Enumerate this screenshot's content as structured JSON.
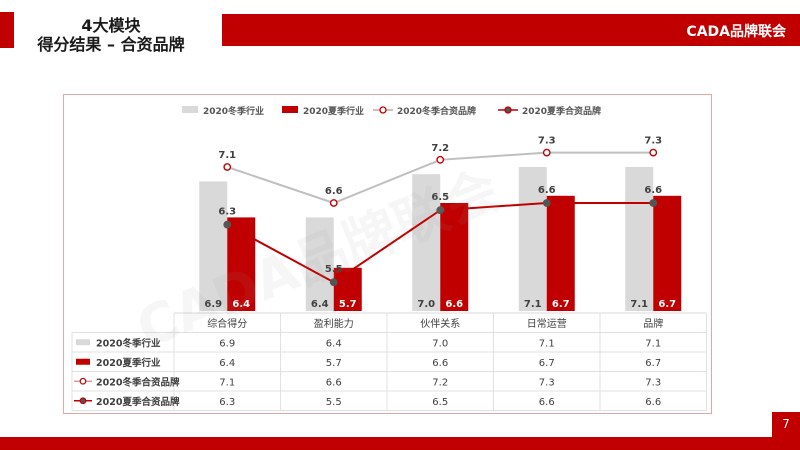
{
  "header": {
    "title_line1": "4大模块",
    "title_line2": "得分结果 – 合资品牌",
    "brand": "CADA品牌联会"
  },
  "footer": {
    "page_number": "7"
  },
  "colors": {
    "accent": "#c00000",
    "winter_bar": "#d9d9d9",
    "winter_line": "#bfbfbf"
  },
  "chart_data": {
    "type": "bar",
    "categories": [
      "综合得分",
      "盈利能力",
      "伙伴关系",
      "日常运营",
      "品牌"
    ],
    "series": [
      {
        "name": "2020冬季行业",
        "kind": "bar",
        "values": [
          6.9,
          6.4,
          7.0,
          7.1,
          7.1
        ]
      },
      {
        "name": "2020夏季行业",
        "kind": "bar",
        "values": [
          6.4,
          5.7,
          6.6,
          6.7,
          6.7
        ]
      },
      {
        "name": "2020冬季合资品牌",
        "kind": "line",
        "values": [
          7.1,
          6.6,
          7.2,
          7.3,
          7.3
        ]
      },
      {
        "name": "2020夏季合资品牌",
        "kind": "line",
        "values": [
          6.3,
          5.5,
          6.5,
          6.6,
          6.6
        ]
      }
    ],
    "grid": false,
    "legend": "top",
    "data_table": true
  }
}
